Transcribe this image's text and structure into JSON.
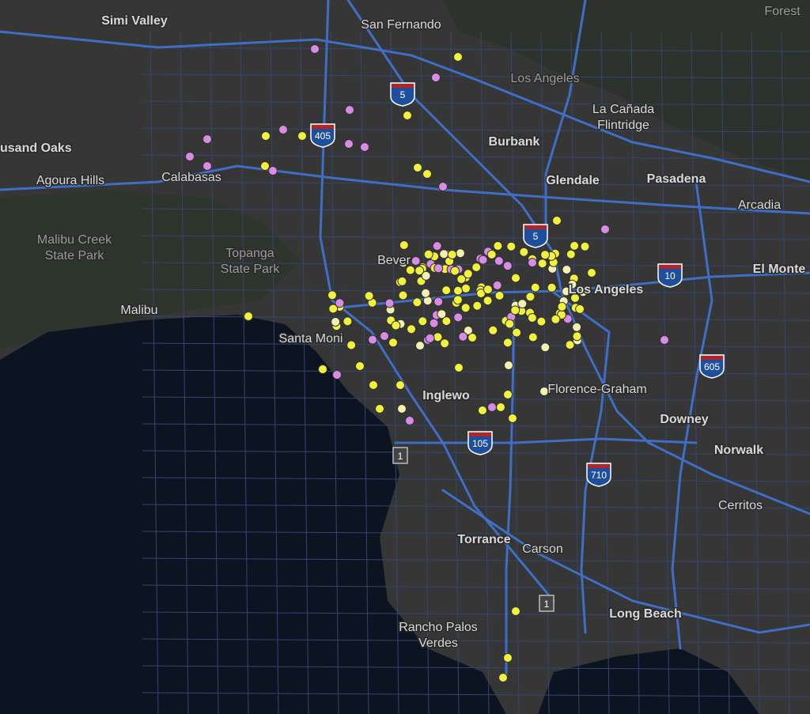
{
  "places": [
    {
      "lines": [
        "Simi Valley"
      ],
      "bold": true
    },
    {
      "lines": [
        "San Fernando"
      ],
      "bold": false
    },
    {
      "lines": [
        "Forest"
      ],
      "bold": false
    },
    {
      "lines": [
        "Los Angeles"
      ],
      "bold": false
    },
    {
      "lines": [
        "La Cañada",
        "Flintridge"
      ],
      "bold": false
    },
    {
      "lines": [
        "Burbank"
      ],
      "bold": true
    },
    {
      "lines": [
        "Glendale"
      ],
      "bold": true
    },
    {
      "lines": [
        "Pasadena"
      ],
      "bold": true
    },
    {
      "lines": [
        "Arcadia"
      ],
      "bold": false
    },
    {
      "lines": [
        "usand Oaks"
      ],
      "bold": true
    },
    {
      "lines": [
        "Agoura Hills"
      ],
      "bold": false
    },
    {
      "lines": [
        "Calabasas"
      ],
      "bold": false
    },
    {
      "lines": [
        "Malibu Creek",
        "State Park"
      ],
      "bold": false
    },
    {
      "lines": [
        "Topanga",
        "State Park"
      ],
      "bold": false
    },
    {
      "lines": [
        "Malibu"
      ],
      "bold": false
    },
    {
      "lines": [
        "Bever"
      ],
      "bold": false
    },
    {
      "lines": [
        "Santa Moni"
      ],
      "bold": false
    },
    {
      "lines": [
        "Los Angeles"
      ],
      "bold": true
    },
    {
      "lines": [
        "El Monte"
      ],
      "bold": true
    },
    {
      "lines": [
        "Inglewo"
      ],
      "bold": true
    },
    {
      "lines": [
        "Florence-Graham"
      ],
      "bold": false
    },
    {
      "lines": [
        "Downey"
      ],
      "bold": true
    },
    {
      "lines": [
        "Norwalk"
      ],
      "bold": true
    },
    {
      "lines": [
        "Cerritos"
      ],
      "bold": false
    },
    {
      "lines": [
        "Torrance"
      ],
      "bold": true
    },
    {
      "lines": [
        "Carson"
      ],
      "bold": false
    },
    {
      "lines": [
        "Long Beach"
      ],
      "bold": true
    },
    {
      "lines": [
        "Rancho Palos",
        "Verdes"
      ],
      "bold": false
    }
  ],
  "shields": [
    {
      "label": "5",
      "kind": "interstate"
    },
    {
      "label": "405",
      "kind": "interstate"
    },
    {
      "label": "5",
      "kind": "interstate"
    },
    {
      "label": "10",
      "kind": "interstate"
    },
    {
      "label": "605",
      "kind": "interstate"
    },
    {
      "label": "105",
      "kind": "interstate"
    },
    {
      "label": "710",
      "kind": "interstate"
    },
    {
      "label": "1",
      "kind": "state"
    },
    {
      "label": "1",
      "kind": "state"
    }
  ]
}
